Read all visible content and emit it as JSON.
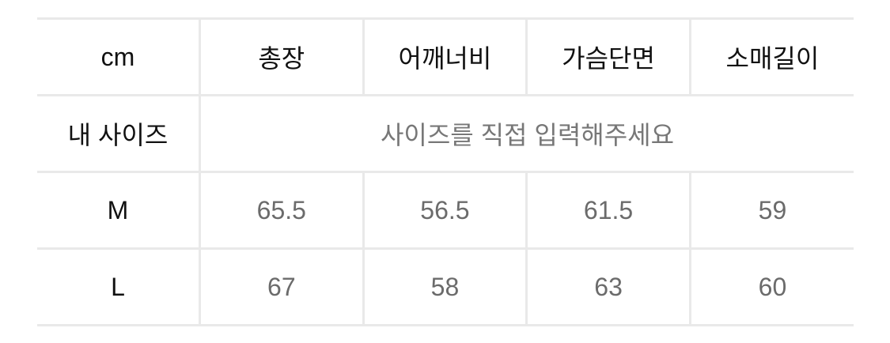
{
  "unit": "cm",
  "columns": [
    "총장",
    "어깨너비",
    "가슴단면",
    "소매길이"
  ],
  "my_size": {
    "label": "내 사이즈",
    "placeholder": "사이즈를 직접 입력해주세요"
  },
  "rows": [
    {
      "size": "M",
      "values": [
        "65.5",
        "56.5",
        "61.5",
        "59"
      ]
    },
    {
      "size": "L",
      "values": [
        "67",
        "58",
        "63",
        "60"
      ]
    }
  ]
}
